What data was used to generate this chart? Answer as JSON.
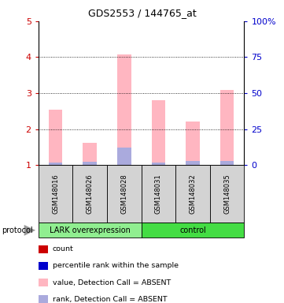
{
  "title": "GDS2553 / 144765_at",
  "samples": [
    "GSM148016",
    "GSM148026",
    "GSM148028",
    "GSM148031",
    "GSM148032",
    "GSM148035"
  ],
  "bar_values": [
    2.55,
    1.62,
    4.08,
    2.8,
    2.22,
    3.08
  ],
  "rank_values": [
    1.08,
    1.1,
    1.48,
    1.08,
    1.12,
    1.12
  ],
  "ylim_left": [
    1,
    5
  ],
  "ylim_right": [
    0,
    100
  ],
  "yticks_left": [
    1,
    2,
    3,
    4,
    5
  ],
  "yticks_right": [
    0,
    25,
    50,
    75,
    100
  ],
  "ytick_labels_right": [
    "0",
    "25",
    "50",
    "75",
    "100%"
  ],
  "bar_color": "#FFB6C1",
  "rank_color": "#AAAADD",
  "bar_width": 0.4,
  "legend_items": [
    {
      "color": "#CC0000",
      "label": "count"
    },
    {
      "color": "#0000CC",
      "label": "percentile rank within the sample"
    },
    {
      "color": "#FFB6C1",
      "label": "value, Detection Call = ABSENT"
    },
    {
      "color": "#AAAADD",
      "label": "rank, Detection Call = ABSENT"
    }
  ],
  "background_color": "#FFFFFF",
  "left_tick_color": "#CC0000",
  "right_tick_color": "#0000CC",
  "lark_green": "#90EE90",
  "control_green": "#44DD44",
  "box_gray": "#D3D3D3"
}
